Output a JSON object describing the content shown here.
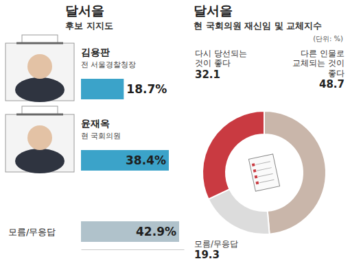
{
  "chart_data": [
    {
      "type": "bar",
      "orientation": "horizontal",
      "title": "달서을",
      "subtitle": "후보 지지도",
      "categories": [
        "김용판",
        "윤재옥",
        "모름/무응답"
      ],
      "annotations": [
        {
          "text": "전 서울경찰청장",
          "category": 0
        },
        {
          "text": "현 국회의원",
          "category": 1
        }
      ],
      "values": [
        18.7,
        38.4,
        42.9
      ],
      "value_labels": [
        "18.7%",
        "38.4%",
        "42.9%"
      ],
      "colors": [
        "#3ba3c9",
        "#3ba3c9",
        "#b0c2cb"
      ],
      "xlim": [
        0,
        45
      ],
      "tick_labels": false,
      "data_labels": true
    },
    {
      "type": "donut",
      "title": "달서을",
      "subtitle": "현 국회의원 재신임 및 교체지수",
      "annotations": [
        {
          "text": "(단위: %)"
        }
      ],
      "categories": [
        "다른 인물로 교체되는 것이 좋다",
        "모름/무응답",
        "다시 당선되는 것이 좋다"
      ],
      "values": [
        48.7,
        19.3,
        32.1
      ],
      "colors": [
        "#c9b6aa",
        "#dcdcdc",
        "#c93a41"
      ],
      "data_labels": true
    }
  ]
}
